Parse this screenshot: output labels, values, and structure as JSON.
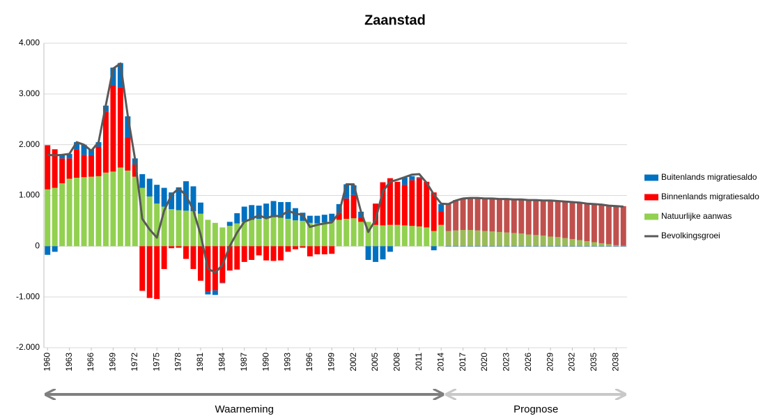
{
  "chart_data": {
    "type": "bar",
    "title": "Zaanstad",
    "x": [
      1960,
      1961,
      1962,
      1963,
      1964,
      1965,
      1966,
      1967,
      1968,
      1969,
      1970,
      1971,
      1972,
      1973,
      1974,
      1975,
      1976,
      1977,
      1978,
      1979,
      1980,
      1981,
      1982,
      1983,
      1984,
      1985,
      1986,
      1987,
      1988,
      1989,
      1990,
      1991,
      1992,
      1993,
      1994,
      1995,
      1996,
      1997,
      1998,
      1999,
      2000,
      2001,
      2002,
      2003,
      2004,
      2005,
      2006,
      2007,
      2008,
      2009,
      2010,
      2011,
      2012,
      2013,
      2014,
      2015,
      2016,
      2017,
      2018,
      2019,
      2020,
      2021,
      2022,
      2023,
      2024,
      2025,
      2026,
      2027,
      2028,
      2029,
      2030,
      2031,
      2032,
      2033,
      2034,
      2035,
      2036,
      2037,
      2038,
      2039
    ],
    "xlim": [
      1959.5,
      2039.5
    ],
    "xticks": [
      1960,
      1963,
      1966,
      1969,
      1972,
      1975,
      1978,
      1981,
      1984,
      1987,
      1990,
      1993,
      1996,
      1999,
      2002,
      2005,
      2008,
      2011,
      2014,
      2017,
      2020,
      2023,
      2026,
      2029,
      2032,
      2035,
      2038
    ],
    "ylim": [
      -2000,
      4000
    ],
    "yticks": [
      {
        "value": -2000,
        "label": "-2.000"
      },
      {
        "value": -1000,
        "label": "-1.000"
      },
      0,
      {
        "value": 1000,
        "label": "1.000"
      },
      {
        "value": 2000,
        "label": "2.000"
      },
      {
        "value": 3000,
        "label": "3.000"
      },
      {
        "value": 4000,
        "label": "4.000"
      }
    ],
    "grid": true,
    "legend": "right",
    "series": [
      {
        "name": "Buitenlands migratiesaldo",
        "color": "#0070c0",
        "prognose_color": "#4f81bd",
        "values": [
          -170,
          -110,
          70,
          90,
          150,
          200,
          120,
          90,
          120,
          350,
          480,
          420,
          120,
          270,
          350,
          370,
          370,
          330,
          450,
          580,
          490,
          220,
          -50,
          -90,
          -10,
          80,
          200,
          300,
          290,
          260,
          280,
          320,
          310,
          330,
          240,
          160,
          140,
          150,
          150,
          150,
          170,
          280,
          190,
          120,
          -270,
          -310,
          -260,
          -110,
          0,
          140,
          80,
          20,
          0,
          -80,
          140,
          -10,
          -10,
          -10,
          -10,
          -10,
          -10,
          -10,
          -10,
          -10,
          -10,
          -10,
          -10,
          -10,
          -10,
          -10,
          -10,
          -10,
          -10,
          -10,
          -10,
          -10,
          -10,
          -10,
          -10,
          -10
        ]
      },
      {
        "name": "Binnenlands migratiesaldo",
        "color": "#ff0000",
        "prognose_color": "#c0504d",
        "values": [
          870,
          760,
          490,
          400,
          550,
          440,
          420,
          580,
          1200,
          1700,
          1580,
          650,
          240,
          -880,
          -1020,
          -1040,
          -450,
          -40,
          -30,
          -250,
          -450,
          -680,
          -900,
          -870,
          -720,
          -480,
          -460,
          -310,
          -270,
          -180,
          -280,
          -290,
          -280,
          -110,
          -60,
          -30,
          -200,
          -160,
          -160,
          -150,
          140,
          400,
          460,
          80,
          0,
          420,
          850,
          920,
          850,
          800,
          900,
          950,
          900,
          760,
          270,
          540,
          600,
          630,
          640,
          650,
          650,
          660,
          660,
          670,
          670,
          680,
          690,
          700,
          700,
          720,
          720,
          730,
          740,
          750,
          750,
          760,
          770,
          770,
          780,
          780
        ]
      },
      {
        "name": "Natuurlijke aanwas",
        "color": "#92d050",
        "prognose_color": "#9bbb59",
        "values": [
          1120,
          1150,
          1240,
          1330,
          1350,
          1360,
          1370,
          1380,
          1450,
          1470,
          1550,
          1490,
          1370,
          1150,
          980,
          840,
          780,
          730,
          710,
          700,
          690,
          640,
          520,
          460,
          370,
          400,
          450,
          480,
          520,
          540,
          560,
          570,
          560,
          540,
          510,
          500,
          460,
          450,
          470,
          490,
          520,
          540,
          550,
          480,
          480,
          420,
          410,
          420,
          420,
          410,
          400,
          390,
          370,
          300,
          420,
          300,
          310,
          320,
          320,
          310,
          300,
          290,
          280,
          270,
          260,
          250,
          230,
          220,
          210,
          190,
          180,
          160,
          140,
          120,
          100,
          80,
          60,
          40,
          20,
          10
        ]
      },
      {
        "name": "Bevolkingsgroei",
        "type": "line",
        "color": "#595959",
        "values": [
          1800,
          1790,
          1800,
          1820,
          2050,
          2000,
          1880,
          2050,
          2780,
          3500,
          3600,
          2580,
          1720,
          540,
          330,
          170,
          700,
          1010,
          1140,
          1000,
          710,
          230,
          -440,
          -520,
          -370,
          0,
          270,
          480,
          540,
          610,
          550,
          600,
          590,
          700,
          640,
          620,
          380,
          420,
          450,
          470,
          660,
          1220,
          1220,
          680,
          280,
          520,
          1080,
          1270,
          1310,
          1360,
          1410,
          1420,
          1250,
          1020,
          840,
          830,
          900,
          940,
          950,
          950,
          940,
          940,
          930,
          930,
          920,
          920,
          910,
          910,
          900,
          900,
          890,
          880,
          870,
          860,
          840,
          830,
          820,
          800,
          790,
          780
        ]
      }
    ],
    "annotations": [
      {
        "text": "Waarneming",
        "range": [
          1960,
          2014
        ],
        "color": "#7f7f7f"
      },
      {
        "text": "Prognose",
        "range": [
          2015,
          2039
        ],
        "color": "#c8c8c8"
      }
    ]
  }
}
